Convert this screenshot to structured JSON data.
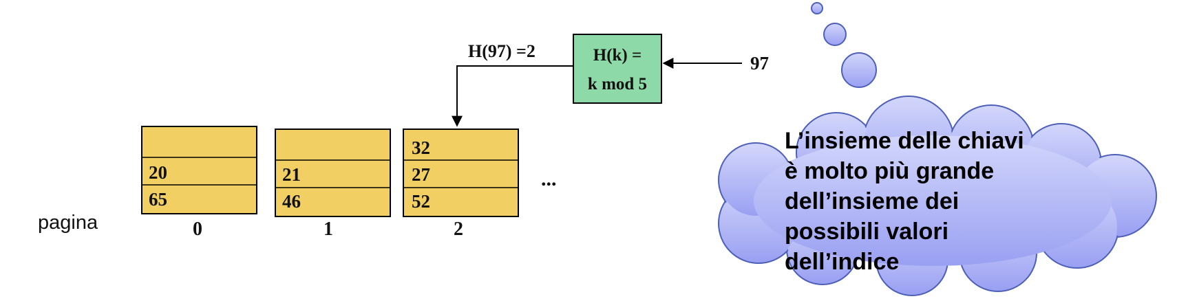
{
  "pages_label": "pagina",
  "pages": [
    {
      "index": "0",
      "slots": [
        "",
        "20",
        "65"
      ]
    },
    {
      "index": "1",
      "slots": [
        "",
        "21",
        "46"
      ]
    },
    {
      "index": "2",
      "slots": [
        "32",
        "27",
        "52"
      ]
    }
  ],
  "ellipsis": "...",
  "hash_function": {
    "line1": "H(k) =",
    "line2": "k mod 5"
  },
  "input_key": "97",
  "hash_result": "H(97) =2",
  "thought_cloud": {
    "lines": [
      "L’insieme delle chiavi",
      "è molto più grande",
      "dell’insieme dei",
      "possibili valori",
      "dell’indice"
    ]
  },
  "colors": {
    "page_fill": "#F2CF63",
    "hash_box_fill": "#8ED9A8",
    "cloud_fill_top": "#D2D6FB",
    "cloud_fill_bottom": "#9AA0F2",
    "cloud_stroke": "#4D5FB8"
  }
}
